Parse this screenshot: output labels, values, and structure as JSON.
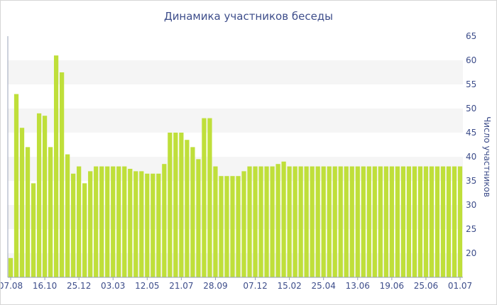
{
  "chart_data": {
    "type": "bar",
    "title": "Динамика участников беседы",
    "ylabel": "Число участников",
    "xlabel": "",
    "ylim": [
      15,
      65
    ],
    "yticks": [
      20,
      25,
      30,
      35,
      40,
      45,
      50,
      55,
      60,
      65
    ],
    "y_axis_side": "right",
    "grid": "alternating horizontal bands",
    "bar_color": "#bfdf3a",
    "x_tick_labels": [
      "07.08",
      "16.10",
      "25.12",
      "03.03",
      "12.05",
      "21.07",
      "28.09",
      "07.12",
      "15.02",
      "25.04",
      "13.06",
      "19.06",
      "25.06",
      "01.07"
    ],
    "values": [
      19,
      53,
      46,
      42,
      34.5,
      49,
      48.5,
      42,
      61,
      57.5,
      40.5,
      36.5,
      38,
      34.5,
      37,
      38,
      38,
      38,
      38,
      38,
      38,
      37.5,
      37,
      37,
      36.5,
      36.5,
      36.5,
      38.5,
      45,
      45,
      45,
      43.5,
      42,
      39.5,
      48,
      48,
      38,
      36,
      36,
      36,
      36,
      37,
      38,
      38,
      38,
      38,
      38,
      38.5,
      39,
      38,
      38,
      38,
      38,
      38,
      38,
      38,
      38,
      38,
      38,
      38,
      38,
      38,
      38,
      38,
      38,
      38,
      38,
      38,
      38,
      38,
      38,
      38,
      38,
      38,
      38,
      38,
      38,
      38,
      38,
      38
    ]
  }
}
